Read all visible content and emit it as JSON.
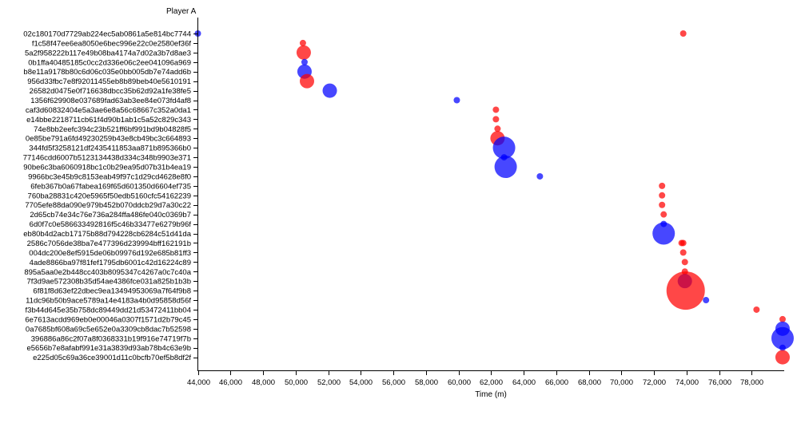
{
  "chart_data": {
    "type": "scatter",
    "title": "",
    "ylabel": "Player A",
    "xlabel": "Time (m)",
    "xlim": [
      44000,
      80000
    ],
    "x_ticks": [
      "44,000",
      "46,000",
      "48,000",
      "50,000",
      "52,000",
      "54,000",
      "56,000",
      "58,000",
      "60,000",
      "62,000",
      "64,000",
      "66,000",
      "68,000",
      "70,000",
      "72,000",
      "74,000",
      "76,000",
      "78,000"
    ],
    "colors": {
      "red": "#ff0000",
      "blue": "#0000ff"
    },
    "rows": [
      "02c180170d7729ab224ec5ab0861a5e814bc7744",
      "f1c58f47ee6ea8050e6bec996e22c0e2580ef36f",
      "5a2f958222b117e49b08ba4174a7d02a3b7d8ae3",
      "0b1ffa40485185c0cc2d336e06c2ee041096a969",
      "b8e11a9178b80c6d06c035e0bb005db7e74add6b",
      "956d33fbc7e8f92011455eb8b89beb40e5610191",
      "26582d0475e0f716638dbcc35b62d92a1fe38fe5",
      "1356f629908e037689fad63ab3ee84e073fd4af8",
      "caf3d60832404e5a3ae6e8a56c68667c352a0da1",
      "e14bbe2218711cb61f4d90b1ab1c5a52c829c343",
      "74e8bb2eefc394c23b521ff6bf991bd9b04828f5",
      "0e85be791a6fd49230259b43e8cb49bc3c664893",
      "344fd5f3258121df2435411853aa871b895366b0",
      "77146cdd6007b5123134438d334c348b9903e371",
      "90be6c3ba6060918bc1c0b29ea95d07b31b4ea19",
      "9966bc3e45b9c8153eab49f97c1d29cd4628e8f0",
      "6feb367b0a67fabea169f65d601350d6604ef735",
      "760ba28831c420e5965f50edb5160cfc54162239",
      "7705efe88da090e979b452b070ddcb29d7a30c22",
      "2d65cb74e34c76e736a284ffa486fe040c0369b7",
      "6d0f7c0e586633492816f5c46b33477e6279b96f",
      "eb80b4d2acb17175b88d794228cb6284c51d41da",
      "2586c7056de38ba7e477396d239994bff162191b",
      "004dc200e8ef5915de06b09976d192e685b81ff3",
      "4ade8866ba97f81fef1795db6001c42d16224c89",
      "895a5aa0e2b448cc403b8095347c4267a0c7c40a",
      "7f3d9ae572308b35d54ae4386fce031a825b1b3b",
      "6f81f8d63ef22dbec9ea13494953069a7f64f9b8",
      "11dc96b50b9ace5789a14e4183a4b0d95858d56f",
      "f3b44d645e35b758dc89449dd21d53472411bb04",
      "6e7613acdd969eb0e00046a0307f1571d2b79c45",
      "0a7685bf608a69c5e652e0a3309cb8dac7b52598",
      "396886a86c2f07a8f0368331b19f916e74719f7b",
      "e5656b7e8afabf991e31a3839d93ab78b4c63e9b",
      "e225d05c69a36ce39001d11c0bcfb70ef5b8df2f"
    ],
    "points": [
      {
        "row": 0,
        "x": 44000,
        "size": 4,
        "color": "blue"
      },
      {
        "row": 0,
        "x": 73800,
        "size": 4,
        "color": "red"
      },
      {
        "row": 1,
        "x": 50450,
        "size": 4,
        "color": "red"
      },
      {
        "row": 2,
        "x": 50500,
        "size": 9,
        "color": "red"
      },
      {
        "row": 3,
        "x": 50550,
        "size": 4,
        "color": "blue"
      },
      {
        "row": 4,
        "x": 50550,
        "size": 9,
        "color": "blue"
      },
      {
        "row": 5,
        "x": 50700,
        "size": 9,
        "color": "red"
      },
      {
        "row": 6,
        "x": 52100,
        "size": 9,
        "color": "blue"
      },
      {
        "row": 7,
        "x": 59900,
        "size": 4,
        "color": "blue"
      },
      {
        "row": 8,
        "x": 62300,
        "size": 4,
        "color": "red"
      },
      {
        "row": 9,
        "x": 62300,
        "size": 4,
        "color": "red"
      },
      {
        "row": 10,
        "x": 62400,
        "size": 4,
        "color": "red"
      },
      {
        "row": 11,
        "x": 62400,
        "size": 9,
        "color": "red"
      },
      {
        "row": 12,
        "x": 62800,
        "size": 14,
        "color": "blue"
      },
      {
        "row": 13,
        "x": 62800,
        "size": 4,
        "color": "blue"
      },
      {
        "row": 14,
        "x": 62900,
        "size": 14,
        "color": "blue"
      },
      {
        "row": 15,
        "x": 65000,
        "size": 4,
        "color": "blue"
      },
      {
        "row": 16,
        "x": 72500,
        "size": 4,
        "color": "red"
      },
      {
        "row": 17,
        "x": 72500,
        "size": 4,
        "color": "red"
      },
      {
        "row": 18,
        "x": 72500,
        "size": 4,
        "color": "red"
      },
      {
        "row": 19,
        "x": 72600,
        "size": 4,
        "color": "red"
      },
      {
        "row": 20,
        "x": 72600,
        "size": 4,
        "color": "blue"
      },
      {
        "row": 21,
        "x": 72600,
        "size": 14,
        "color": "blue"
      },
      {
        "row": 22,
        "x": 73700,
        "size": 4,
        "color": "red"
      },
      {
        "row": 22,
        "x": 73800,
        "size": 4,
        "color": "red"
      },
      {
        "row": 23,
        "x": 73800,
        "size": 4,
        "color": "red"
      },
      {
        "row": 24,
        "x": 73900,
        "size": 4,
        "color": "red"
      },
      {
        "row": 25,
        "x": 73900,
        "size": 4,
        "color": "red"
      },
      {
        "row": 26,
        "x": 73900,
        "size": 9,
        "color": "blue"
      },
      {
        "row": 27,
        "x": 73950,
        "size": 24,
        "color": "red"
      },
      {
        "row": 28,
        "x": 75200,
        "size": 4,
        "color": "blue"
      },
      {
        "row": 29,
        "x": 78300,
        "size": 4,
        "color": "red"
      },
      {
        "row": 30,
        "x": 79900,
        "size": 4,
        "color": "red"
      },
      {
        "row": 31,
        "x": 79900,
        "size": 9,
        "color": "blue"
      },
      {
        "row": 32,
        "x": 79900,
        "size": 14,
        "color": "blue"
      },
      {
        "row": 33,
        "x": 79900,
        "size": 4,
        "color": "blue"
      },
      {
        "row": 34,
        "x": 79900,
        "size": 9,
        "color": "red"
      }
    ]
  }
}
